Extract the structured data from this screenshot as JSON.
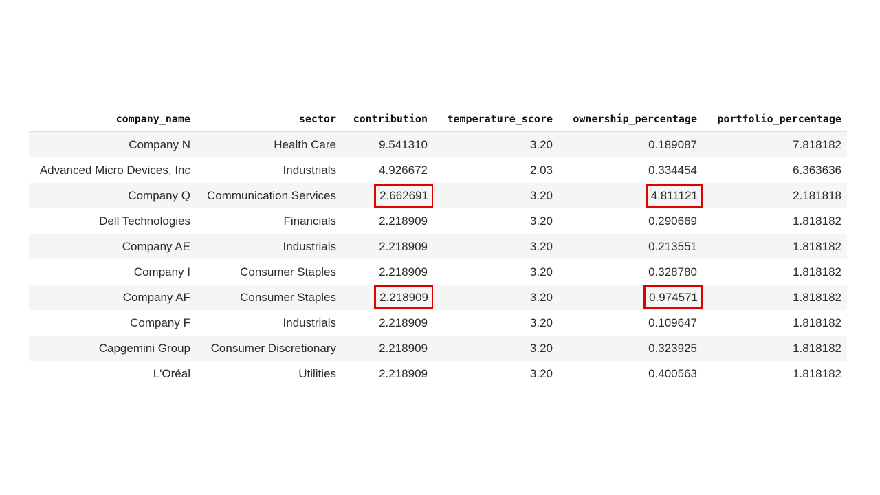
{
  "table": {
    "columns": [
      "company_name",
      "sector",
      "contribution",
      "temperature_score",
      "ownership_percentage",
      "portfolio_percentage"
    ],
    "rows": [
      {
        "company_name": "Company N",
        "sector": "Health Care",
        "contribution": "9.541310",
        "temperature_score": "3.20",
        "ownership_percentage": "0.189087",
        "portfolio_percentage": "7.818182"
      },
      {
        "company_name": "Advanced Micro Devices, Inc",
        "sector": "Industrials",
        "contribution": "4.926672",
        "temperature_score": "2.03",
        "ownership_percentage": "0.334454",
        "portfolio_percentage": "6.363636"
      },
      {
        "company_name": "Company Q",
        "sector": "Communication Services",
        "contribution": "2.662691",
        "temperature_score": "3.20",
        "ownership_percentage": "4.811121",
        "portfolio_percentage": "2.181818"
      },
      {
        "company_name": "Dell Technologies",
        "sector": "Financials",
        "contribution": "2.218909",
        "temperature_score": "3.20",
        "ownership_percentage": "0.290669",
        "portfolio_percentage": "1.818182"
      },
      {
        "company_name": "Company AE",
        "sector": "Industrials",
        "contribution": "2.218909",
        "temperature_score": "3.20",
        "ownership_percentage": "0.213551",
        "portfolio_percentage": "1.818182"
      },
      {
        "company_name": "Company I",
        "sector": "Consumer Staples",
        "contribution": "2.218909",
        "temperature_score": "3.20",
        "ownership_percentage": "0.328780",
        "portfolio_percentage": "1.818182"
      },
      {
        "company_name": "Company AF",
        "sector": "Consumer Staples",
        "contribution": "2.218909",
        "temperature_score": "3.20",
        "ownership_percentage": "0.974571",
        "portfolio_percentage": "1.818182"
      },
      {
        "company_name": "Company F",
        "sector": "Industrials",
        "contribution": "2.218909",
        "temperature_score": "3.20",
        "ownership_percentage": "0.109647",
        "portfolio_percentage": "1.818182"
      },
      {
        "company_name": "Capgemini Group",
        "sector": "Consumer Discretionary",
        "contribution": "2.218909",
        "temperature_score": "3.20",
        "ownership_percentage": "0.323925",
        "portfolio_percentage": "1.818182"
      },
      {
        "company_name": "L'Oréal",
        "sector": "Utilities",
        "contribution": "2.218909",
        "temperature_score": "3.20",
        "ownership_percentage": "0.400563",
        "portfolio_percentage": "1.818182"
      }
    ],
    "highlighted_cells": [
      {
        "row": 2,
        "column": "contribution"
      },
      {
        "row": 2,
        "column": "ownership_percentage"
      },
      {
        "row": 6,
        "column": "contribution"
      },
      {
        "row": 6,
        "column": "ownership_percentage"
      }
    ],
    "highlight_color": "#e00000"
  }
}
